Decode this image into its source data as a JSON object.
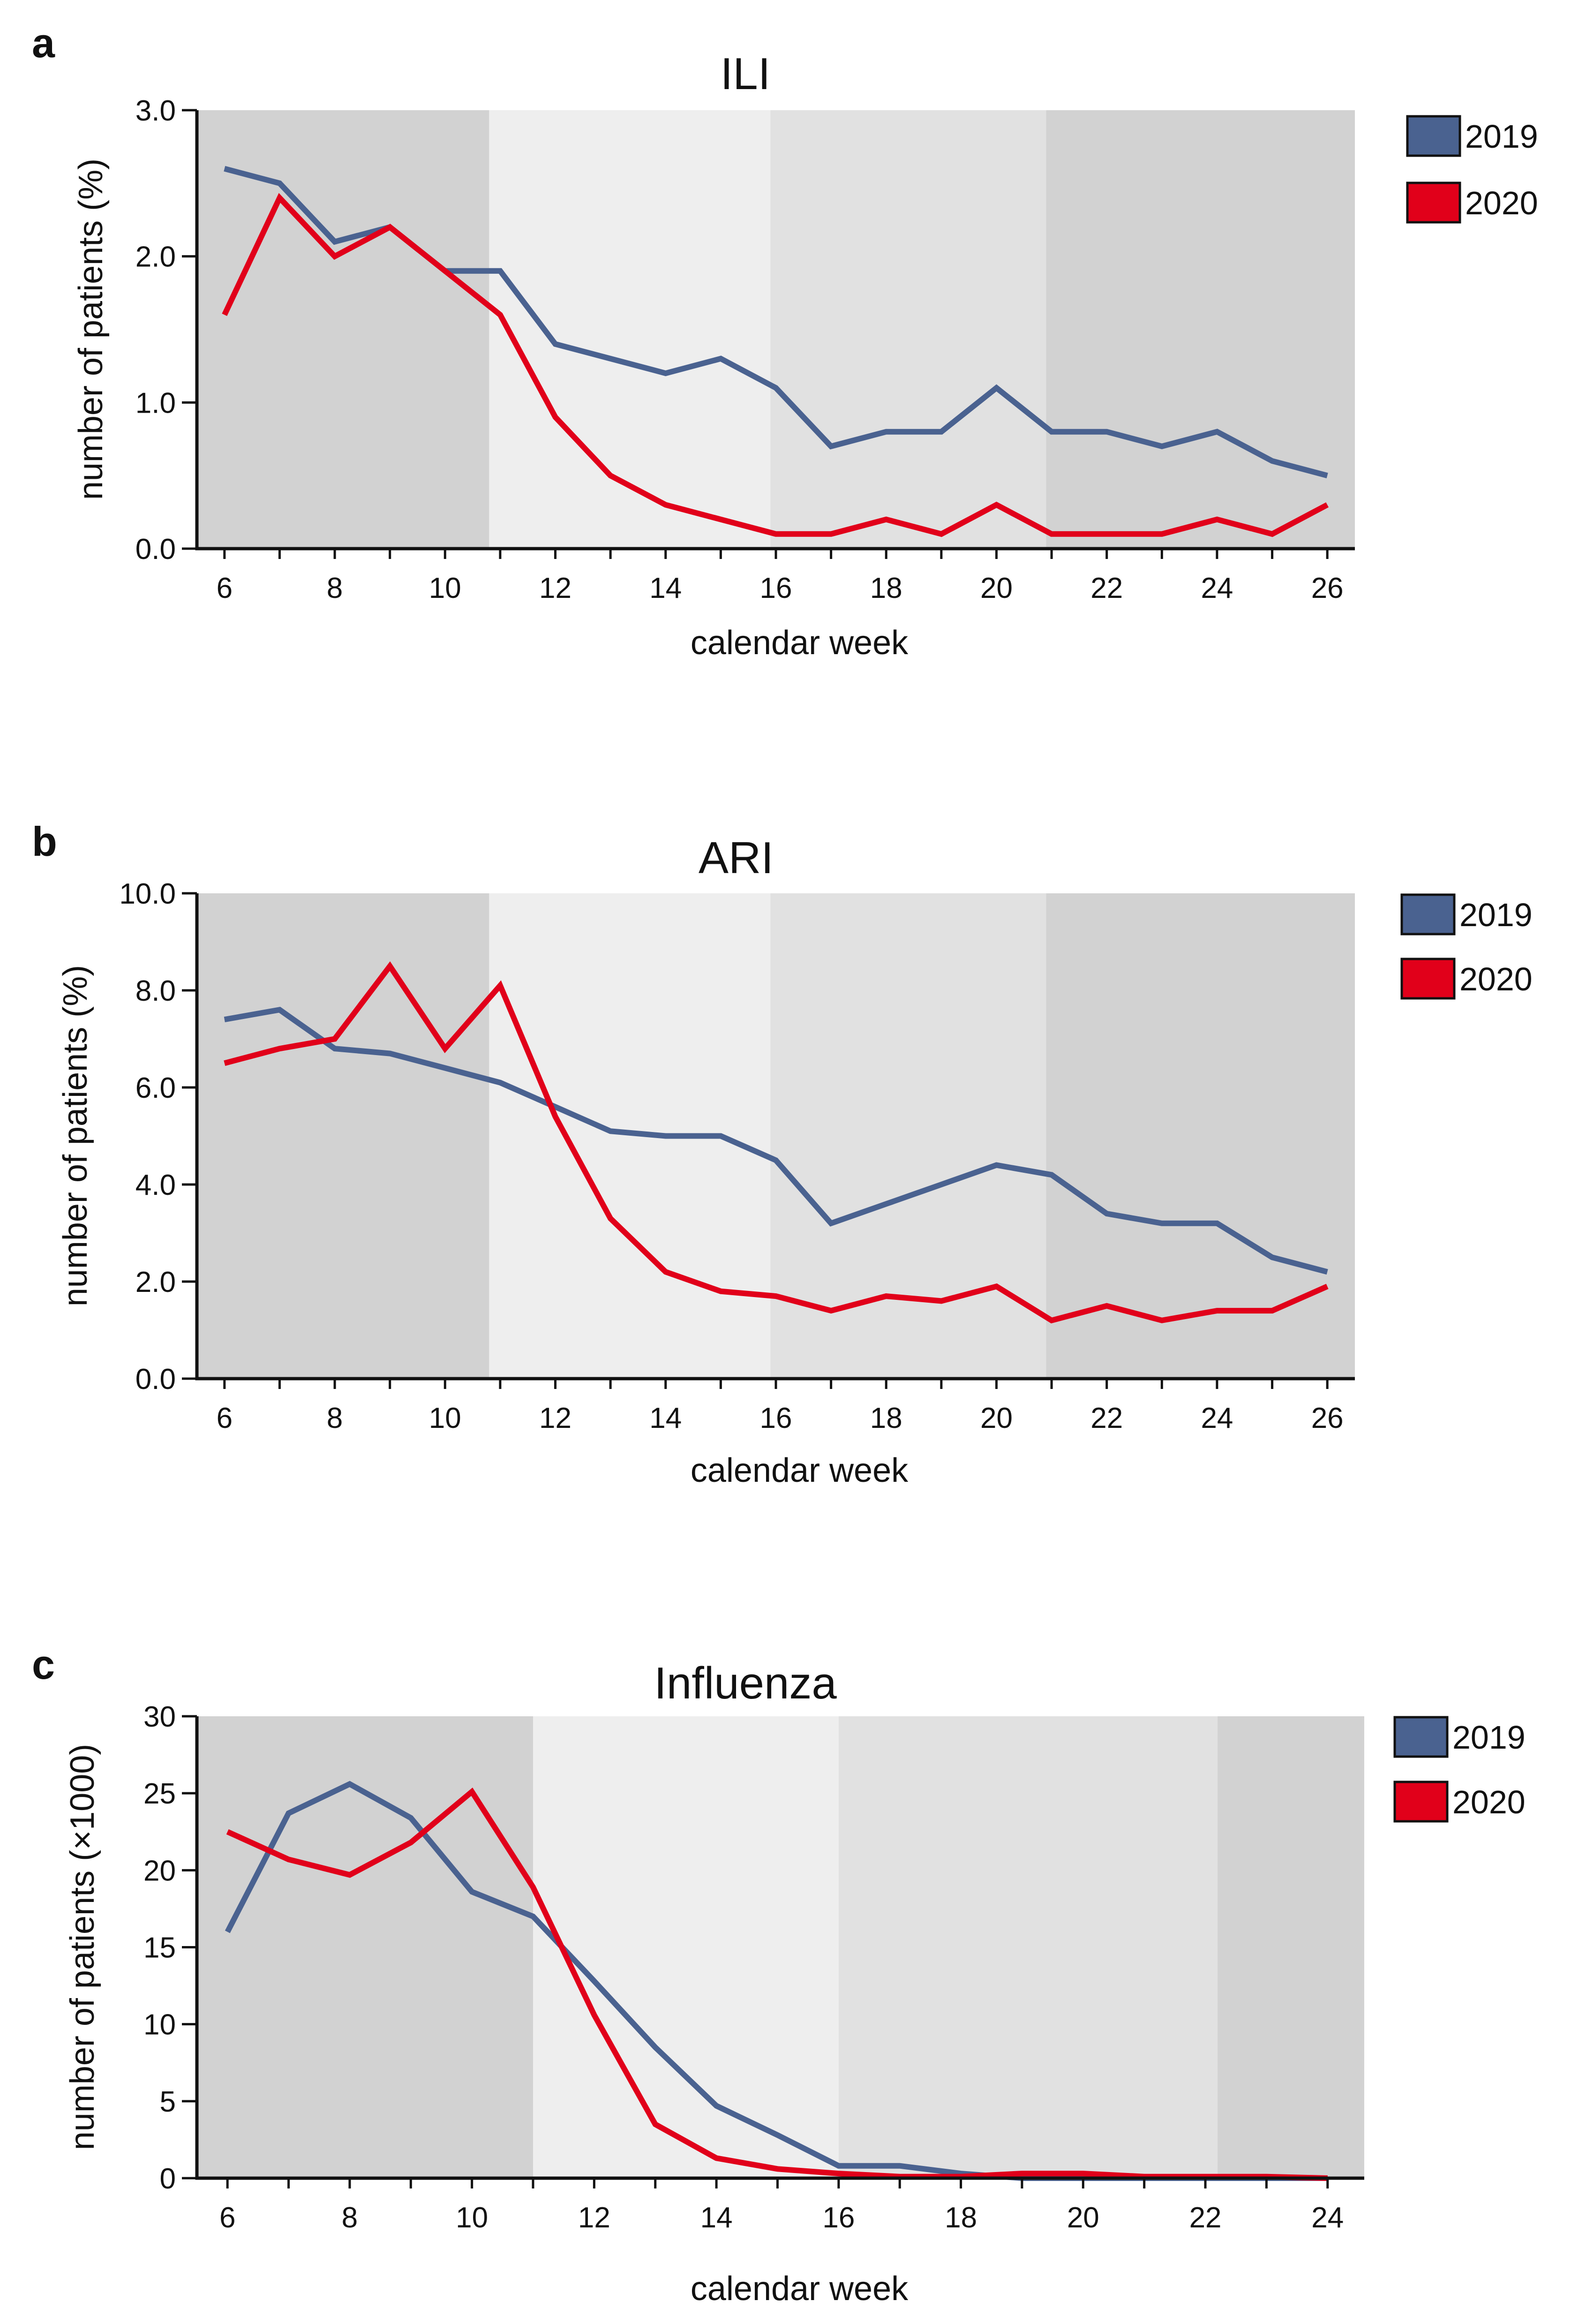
{
  "chart_data": [
    {
      "type": "line",
      "panel_letter": "a",
      "title": "ILI",
      "xlabel": "calendar week",
      "ylabel": "number of patients (%)",
      "xlim": [
        5.5,
        26.5
      ],
      "ylim": [
        0,
        3
      ],
      "xticks": [
        6,
        8,
        10,
        12,
        14,
        16,
        18,
        20,
        22,
        24,
        26
      ],
      "yticks": [
        0,
        1,
        2,
        3
      ],
      "ytick_labels": [
        "0.0",
        "1.0",
        "2.0",
        "3.0"
      ],
      "shading": [
        {
          "from": 5.5,
          "to": 10.8,
          "color": "#d2d2d2"
        },
        {
          "from": 10.8,
          "to": 15.9,
          "color": "#eeeeee"
        },
        {
          "from": 15.9,
          "to": 20.9,
          "color": "#e1e1e1"
        },
        {
          "from": 20.9,
          "to": 26.5,
          "color": "#d2d2d2"
        }
      ],
      "x": [
        6,
        7,
        8,
        9,
        10,
        11,
        12,
        13,
        14,
        15,
        16,
        17,
        18,
        19,
        20,
        21,
        22,
        23,
        24,
        25,
        26
      ],
      "series": [
        {
          "name": "2019",
          "color": "#4a6290",
          "values": [
            2.6,
            2.5,
            2.1,
            2.2,
            1.9,
            1.9,
            1.4,
            1.3,
            1.2,
            1.3,
            1.1,
            0.7,
            0.8,
            0.8,
            1.1,
            0.8,
            0.8,
            0.7,
            0.8,
            0.6,
            0.5
          ]
        },
        {
          "name": "2020",
          "color": "#e1001a",
          "values": [
            1.6,
            2.4,
            2.0,
            2.2,
            1.9,
            1.6,
            0.9,
            0.5,
            0.3,
            0.2,
            0.1,
            0.1,
            0.2,
            0.1,
            0.3,
            0.1,
            0.1,
            0.1,
            0.2,
            0.1,
            0.3
          ]
        }
      ],
      "legend": [
        "2019",
        "2020"
      ],
      "legend_position": "right"
    },
    {
      "type": "line",
      "panel_letter": "b",
      "title": "ARI",
      "xlabel": "calendar week",
      "ylabel": "number of patients (%)",
      "xlim": [
        5.5,
        26.5
      ],
      "ylim": [
        0,
        10
      ],
      "xticks": [
        6,
        8,
        10,
        12,
        14,
        16,
        18,
        20,
        22,
        24,
        26
      ],
      "yticks": [
        0,
        2,
        4,
        6,
        8,
        10
      ],
      "ytick_labels": [
        "0.0",
        "2.0",
        "4.0",
        "6.0",
        "8.0",
        "10.0"
      ],
      "shading": [
        {
          "from": 5.5,
          "to": 10.8,
          "color": "#d2d2d2"
        },
        {
          "from": 10.8,
          "to": 15.9,
          "color": "#eeeeee"
        },
        {
          "from": 15.9,
          "to": 20.9,
          "color": "#e1e1e1"
        },
        {
          "from": 20.9,
          "to": 26.5,
          "color": "#d2d2d2"
        }
      ],
      "x": [
        6,
        7,
        8,
        9,
        10,
        11,
        12,
        13,
        14,
        15,
        16,
        17,
        18,
        19,
        20,
        21,
        22,
        23,
        24,
        25,
        26
      ],
      "series": [
        {
          "name": "2019",
          "color": "#4a6290",
          "values": [
            7.4,
            7.6,
            6.8,
            6.7,
            6.4,
            6.1,
            5.6,
            5.1,
            5.0,
            5.0,
            4.5,
            3.2,
            3.6,
            4.0,
            4.4,
            4.2,
            3.4,
            3.2,
            3.2,
            2.5,
            2.2
          ]
        },
        {
          "name": "2020",
          "color": "#e1001a",
          "values": [
            6.5,
            6.8,
            7.0,
            8.5,
            6.8,
            8.1,
            5.4,
            3.3,
            2.2,
            1.8,
            1.7,
            1.4,
            1.7,
            1.6,
            1.9,
            1.2,
            1.5,
            1.2,
            1.4,
            1.4,
            1.9
          ]
        }
      ],
      "legend": [
        "2019",
        "2020"
      ],
      "legend_position": "right"
    },
    {
      "type": "line",
      "panel_letter": "c",
      "title": "Influenza",
      "xlabel": "calendar week",
      "ylabel": "number of patients  (×1000)",
      "xlim": [
        5.5,
        24.6
      ],
      "ylim": [
        0,
        30
      ],
      "xticks": [
        6,
        8,
        10,
        12,
        14,
        16,
        18,
        20,
        22,
        24
      ],
      "yticks": [
        0,
        5,
        10,
        15,
        20,
        25,
        30
      ],
      "ytick_labels": [
        "0",
        "5",
        "10",
        "15",
        "20",
        "25",
        "30"
      ],
      "shading": [
        {
          "from": 5.5,
          "to": 11.0,
          "color": "#d2d2d2"
        },
        {
          "from": 11.0,
          "to": 16.0,
          "color": "#eeeeee"
        },
        {
          "from": 16.0,
          "to": 22.2,
          "color": "#e1e1e1"
        },
        {
          "from": 22.2,
          "to": 24.6,
          "color": "#d2d2d2"
        }
      ],
      "x": [
        6,
        7,
        8,
        9,
        10,
        11,
        12,
        13,
        14,
        15,
        16,
        17,
        18,
        19,
        20,
        21,
        22,
        23,
        24
      ],
      "series": [
        {
          "name": "2019",
          "color": "#4a6290",
          "values": [
            16.0,
            23.7,
            25.6,
            23.4,
            18.6,
            17.0,
            12.8,
            8.5,
            4.7,
            2.8,
            0.8,
            0.8,
            0.3,
            0.0,
            0.0,
            0.0,
            0.0,
            0.0,
            0.0
          ]
        },
        {
          "name": "2020",
          "color": "#e1001a",
          "values": [
            22.5,
            20.7,
            19.7,
            21.8,
            25.1,
            18.9,
            10.6,
            3.5,
            1.3,
            0.6,
            0.3,
            0.1,
            0.1,
            0.3,
            0.3,
            0.1,
            0.1,
            0.1,
            0.0
          ]
        }
      ],
      "legend": [
        "2019",
        "2020"
      ],
      "legend_position": "right"
    }
  ]
}
